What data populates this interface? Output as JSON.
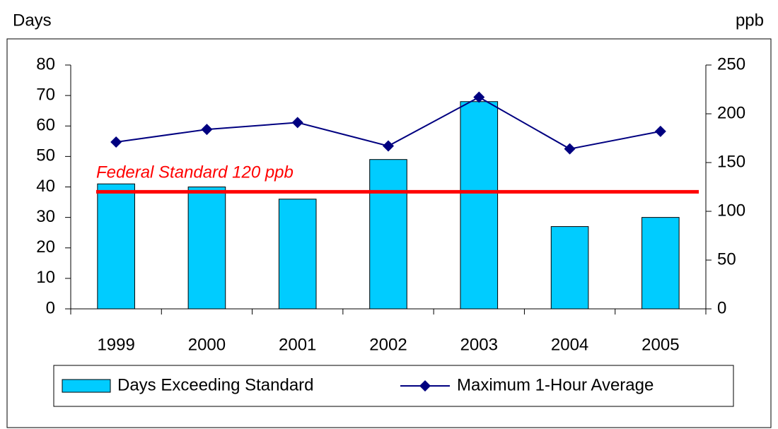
{
  "chart_data": {
    "type": "bar",
    "y_label": "Days",
    "y2_label": "ppb",
    "categories": [
      "1999",
      "2000",
      "2001",
      "2002",
      "2003",
      "2004",
      "2005"
    ],
    "series": [
      {
        "name": "Days Exceeding Standard",
        "type": "bar",
        "color": "#00ccff",
        "values": [
          41,
          40,
          36,
          49,
          68,
          27,
          30
        ]
      },
      {
        "name": "Maximum 1-Hour Average",
        "type": "line",
        "axis": "y2",
        "color": "#000080",
        "values": [
          171,
          184,
          191,
          167,
          217,
          164,
          182
        ]
      }
    ],
    "ylim": [
      0,
      80
    ],
    "yticks": [
      0,
      10,
      20,
      30,
      40,
      50,
      60,
      70,
      80
    ],
    "y2lim": [
      0,
      250
    ],
    "y2ticks": [
      0,
      50,
      100,
      150,
      200,
      250
    ],
    "annotations": [
      {
        "text": "Federal Standard 120 ppb",
        "value": 120,
        "axis": "y2",
        "color": "#ff0000"
      }
    ]
  }
}
